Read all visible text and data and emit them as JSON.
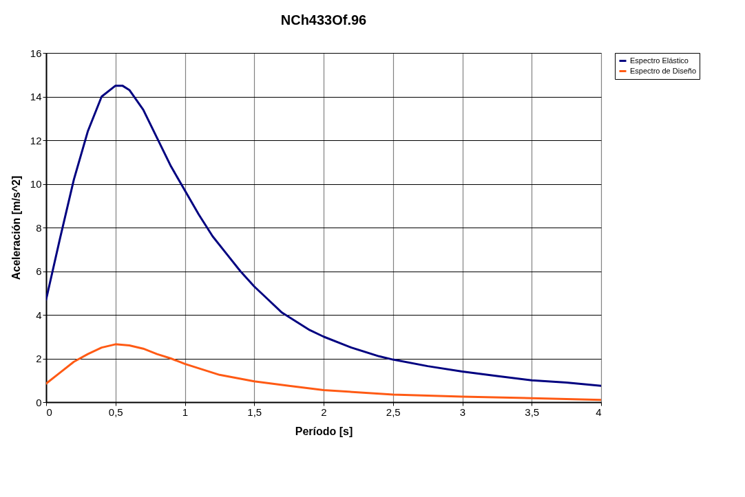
{
  "chart_data": {
    "type": "line",
    "title": "NCh433Of.96",
    "xlabel": "Período [s]",
    "ylabel": "Aceleración [m/s^2]",
    "xlim": [
      0,
      4
    ],
    "ylim": [
      0,
      16
    ],
    "xticks": [
      0,
      {
        "value": 0.5,
        "label": "0,5"
      },
      1,
      {
        "value": 1.5,
        "label": "1,5"
      },
      2,
      {
        "value": 2.5,
        "label": "2,5"
      },
      3,
      {
        "value": 3.5,
        "label": "3,5"
      },
      4
    ],
    "yticks": [
      0,
      2,
      4,
      6,
      8,
      10,
      12,
      14,
      16
    ],
    "grid": true,
    "legend": "right",
    "marker": "none",
    "line_style": "solid",
    "series": [
      {
        "name": "Espectro Elástico",
        "color": "#000080",
        "x": [
          0,
          0.1,
          0.2,
          0.3,
          0.4,
          0.5,
          0.55,
          0.6,
          0.7,
          0.8,
          0.9,
          1.0,
          1.1,
          1.2,
          1.3,
          1.4,
          1.5,
          1.6,
          1.7,
          1.8,
          1.9,
          2.0,
          2.2,
          2.4,
          2.5,
          2.75,
          3.0,
          3.25,
          3.5,
          3.75,
          4.0
        ],
        "values": [
          4.7,
          7.5,
          10.2,
          12.4,
          14.0,
          14.5,
          14.5,
          14.3,
          13.4,
          12.1,
          10.8,
          9.7,
          8.6,
          7.6,
          6.8,
          6.0,
          5.3,
          4.7,
          4.1,
          3.7,
          3.3,
          3.0,
          2.5,
          2.1,
          1.95,
          1.65,
          1.4,
          1.2,
          1.0,
          0.9,
          0.75
        ]
      },
      {
        "name": "Espectro de Diseño",
        "color": "#ff5a14",
        "x": [
          0,
          0.1,
          0.2,
          0.3,
          0.4,
          0.5,
          0.6,
          0.7,
          0.8,
          0.9,
          1.0,
          1.25,
          1.5,
          1.75,
          2.0,
          2.5,
          3.0,
          3.5,
          4.0
        ],
        "values": [
          0.85,
          1.35,
          1.85,
          2.2,
          2.5,
          2.65,
          2.6,
          2.45,
          2.2,
          2.0,
          1.75,
          1.25,
          0.95,
          0.75,
          0.55,
          0.35,
          0.25,
          0.18,
          0.1
        ]
      }
    ]
  }
}
